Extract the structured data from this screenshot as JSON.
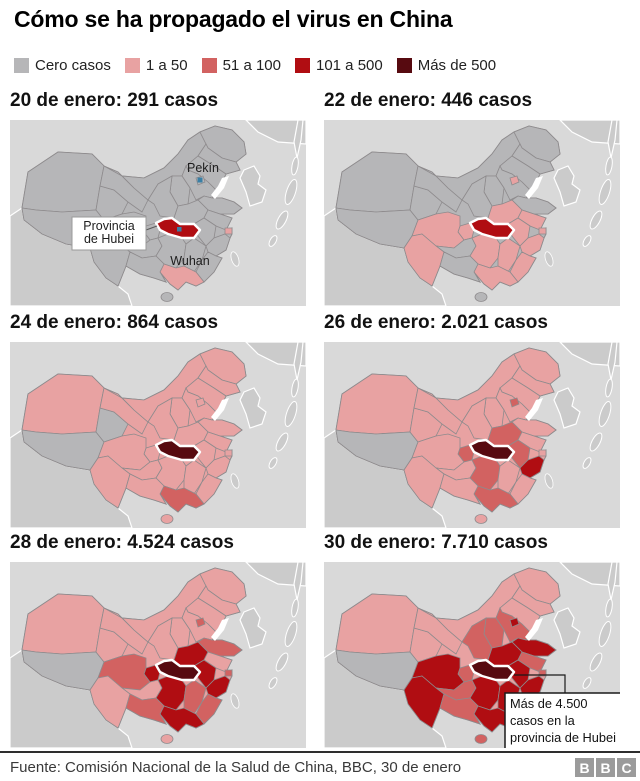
{
  "title": "Cómo se ha propagado el virus en China",
  "legend": {
    "items": [
      {
        "label": "Cero casos",
        "color": "#b6b6b8"
      },
      {
        "label": "1 a 50",
        "color": "#e8a2a2"
      },
      {
        "label": "51 a 100",
        "color": "#d26261"
      },
      {
        "label": "101 a 500",
        "color": "#b00d12"
      },
      {
        "label": "Más de 500",
        "color": "#570a10"
      }
    ]
  },
  "colors": {
    "sea": "#d9d9d9",
    "foreign_land": "#cbcbcb",
    "province_border": "#8e8b8d",
    "hubei_outline": "#ffffff",
    "city_marker": "#3a7fa5",
    "categories": [
      "#b6b6b8",
      "#e8a2a2",
      "#d26261",
      "#b00d12",
      "#570a10"
    ]
  },
  "category_labels": [
    "Cero casos",
    "1 a 50",
    "51 a 100",
    "101 a 500",
    "Más de 500"
  ],
  "map_annotations": {
    "pekin_label": "Pekín",
    "wuhan_label": "Wuhan",
    "hubei_callout_lines": [
      "Provincia",
      "de Hubei"
    ],
    "final_callout_lines": [
      "Más de 4.500",
      "casos en la",
      "provincia de Hubei"
    ]
  },
  "panels": [
    {
      "title": "20 de enero: 291 casos",
      "date": "20 de enero",
      "cases": "291",
      "base_category": 0,
      "has_intro_labels": true,
      "has_final_callout": false,
      "categories": {
        "hubei": 3,
        "guangdong": 1,
        "shanghai": 1
      }
    },
    {
      "title": "22 de enero: 446 casos",
      "date": "22 de enero",
      "cases": "446",
      "base_category": 0,
      "has_intro_labels": false,
      "has_final_callout": false,
      "categories": {
        "hubei": 3,
        "beijing": 1,
        "henan": 1,
        "jiangsu": 1,
        "shanghai": 1,
        "anhui": 1,
        "chongqing": 1,
        "sichuan": 1,
        "yunnan": 1,
        "hunan": 1,
        "jiangxi": 1,
        "zhejiang": 1,
        "fujian": 1,
        "guangdong": 1
      }
    },
    {
      "title": "24 de enero: 864 casos",
      "date": "24 de enero",
      "cases": "864",
      "base_category": 1,
      "has_intro_labels": false,
      "has_final_callout": false,
      "categories": {
        "hubei": 4,
        "tibet": 0,
        "qinghai": 0,
        "guangdong": 2
      }
    },
    {
      "title": "26 de enero: 2.021 casos",
      "date": "26 de enero",
      "cases": "2.021",
      "base_category": 1,
      "has_intro_labels": false,
      "has_final_callout": false,
      "categories": {
        "hubei": 4,
        "tibet": 0,
        "zhejiang": 3,
        "chongqing": 2,
        "henan": 2,
        "hunan": 2,
        "guangdong": 2,
        "anhui": 2,
        "beijing": 2
      }
    },
    {
      "title": "28 de enero: 4.524 casos",
      "date": "28 de enero",
      "cases": "4.524",
      "base_category": 1,
      "has_intro_labels": false,
      "has_final_callout": false,
      "categories": {
        "hubei": 4,
        "tibet": 0,
        "chongqing": 3,
        "henan": 3,
        "anhui": 3,
        "hunan": 3,
        "zhejiang": 3,
        "guangdong": 3,
        "sichuan": 2,
        "shandong": 2,
        "jiangxi": 2,
        "beijing": 2,
        "shanghai": 2,
        "fujian": 2,
        "guangxi": 2
      }
    },
    {
      "title": "30 de enero: 7.710 casos",
      "date": "30 de enero",
      "cases": "7.710",
      "base_category": 1,
      "has_intro_labels": false,
      "has_final_callout": true,
      "categories": {
        "hubei": 4,
        "tibet": 0,
        "sichuan": 3,
        "yunnan": 3,
        "henan": 3,
        "anhui": 3,
        "shandong": 3,
        "beijing": 3,
        "hunan": 3,
        "jiangxi": 3,
        "zhejiang": 3,
        "guangdong": 3,
        "fujian": 3,
        "chongqing": 2,
        "guizhou": 2,
        "guangxi": 2,
        "shaanxi": 2,
        "shanxi": 2,
        "hebei": 2,
        "jiangsu": 2,
        "shanghai": 2,
        "hainan": 2
      }
    }
  ],
  "footer": {
    "source": "Fuente: Comisión Nacional de la Salud de China, BBC, 30 de enero",
    "logo_letters": [
      "B",
      "B",
      "C"
    ]
  }
}
